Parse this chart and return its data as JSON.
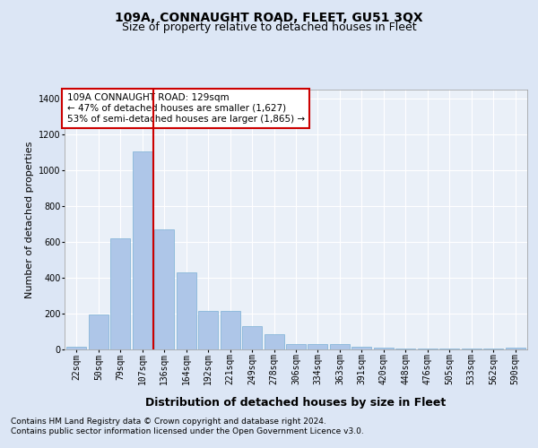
{
  "title": "109A, CONNAUGHT ROAD, FLEET, GU51 3QX",
  "subtitle": "Size of property relative to detached houses in Fleet",
  "xlabel": "Distribution of detached houses by size in Fleet",
  "ylabel": "Number of detached properties",
  "categories": [
    "22sqm",
    "50sqm",
    "79sqm",
    "107sqm",
    "136sqm",
    "164sqm",
    "192sqm",
    "221sqm",
    "249sqm",
    "278sqm",
    "306sqm",
    "334sqm",
    "363sqm",
    "391sqm",
    "420sqm",
    "448sqm",
    "476sqm",
    "505sqm",
    "533sqm",
    "562sqm",
    "590sqm"
  ],
  "values": [
    15,
    195,
    620,
    1105,
    670,
    430,
    215,
    215,
    130,
    83,
    32,
    28,
    28,
    15,
    10,
    5,
    5,
    5,
    5,
    5,
    10
  ],
  "bar_color": "#aec6e8",
  "bar_edge_color": "#7aafd4",
  "vline_color": "#cc0000",
  "vline_pos": 3.5,
  "annotation_text": "109A CONNAUGHT ROAD: 129sqm\n← 47% of detached houses are smaller (1,627)\n53% of semi-detached houses are larger (1,865) →",
  "annotation_box_facecolor": "#ffffff",
  "annotation_box_edgecolor": "#cc0000",
  "ylim": [
    0,
    1450
  ],
  "yticks": [
    0,
    200,
    400,
    600,
    800,
    1000,
    1200,
    1400
  ],
  "bg_color": "#dce6f5",
  "plot_bg_color": "#eaf0f8",
  "footer_line1": "Contains HM Land Registry data © Crown copyright and database right 2024.",
  "footer_line2": "Contains public sector information licensed under the Open Government Licence v3.0.",
  "title_fontsize": 10,
  "subtitle_fontsize": 9,
  "xlabel_fontsize": 9,
  "ylabel_fontsize": 8,
  "tick_fontsize": 7,
  "annotation_fontsize": 7.5,
  "footer_fontsize": 6.5
}
